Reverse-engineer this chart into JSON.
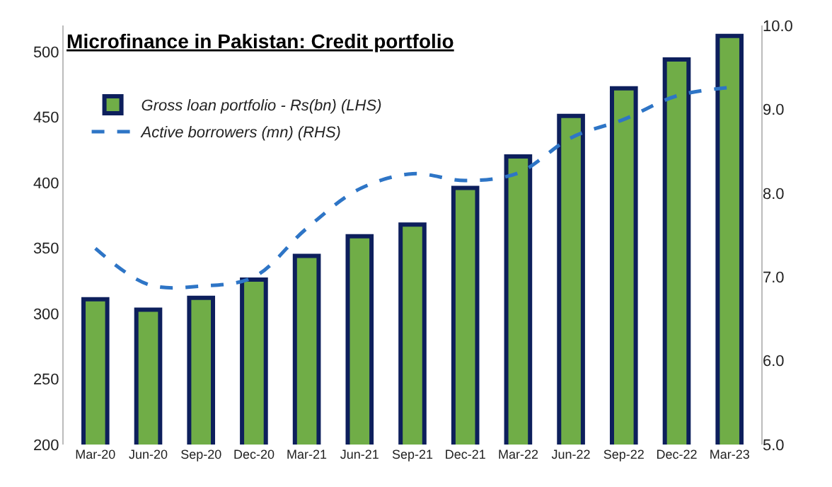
{
  "chart_data": {
    "type": "bar",
    "title": "Microfinance in Pakistan: Credit portfolio",
    "categories": [
      "Mar-20",
      "Jun-20",
      "Sep-20",
      "Dec-20",
      "Mar-21",
      "Jun-21",
      "Sep-21",
      "Dec-21",
      "Mar-22",
      "Jun-22",
      "Sep-22",
      "Dec-22",
      "Mar-23"
    ],
    "series": [
      {
        "name": "Gross loan portfolio - Rs(bn) (LHS)",
        "color": "#70ad47",
        "values": [
          311,
          303,
          312,
          326,
          344,
          359,
          368,
          396,
          420,
          451,
          472,
          494,
          512
        ]
      },
      {
        "name": "Active borrowers (mn) (RHS)",
        "type": "line",
        "axis": "y2",
        "color": "#2e75c6",
        "line_style": "dashed",
        "values": [
          7.34,
          6.91,
          6.89,
          7.0,
          7.58,
          8.05,
          8.23,
          8.15,
          8.24,
          8.66,
          8.88,
          9.16,
          9.26
        ]
      }
    ],
    "ylim": [
      200,
      520
    ],
    "yticks": [
      200,
      250,
      300,
      350,
      400,
      450,
      500
    ],
    "y2lim": [
      5,
      10
    ],
    "y2ticks": [
      {
        "value": 5,
        "label": "5.0"
      },
      {
        "value": 6,
        "label": "6.0"
      },
      {
        "value": 7,
        "label": "7.0"
      },
      {
        "value": 8,
        "label": "8.0"
      },
      {
        "value": 9,
        "label": "9.0"
      },
      {
        "value": 10,
        "label": "10.0"
      }
    ],
    "legend": "top left",
    "marker": "none"
  }
}
